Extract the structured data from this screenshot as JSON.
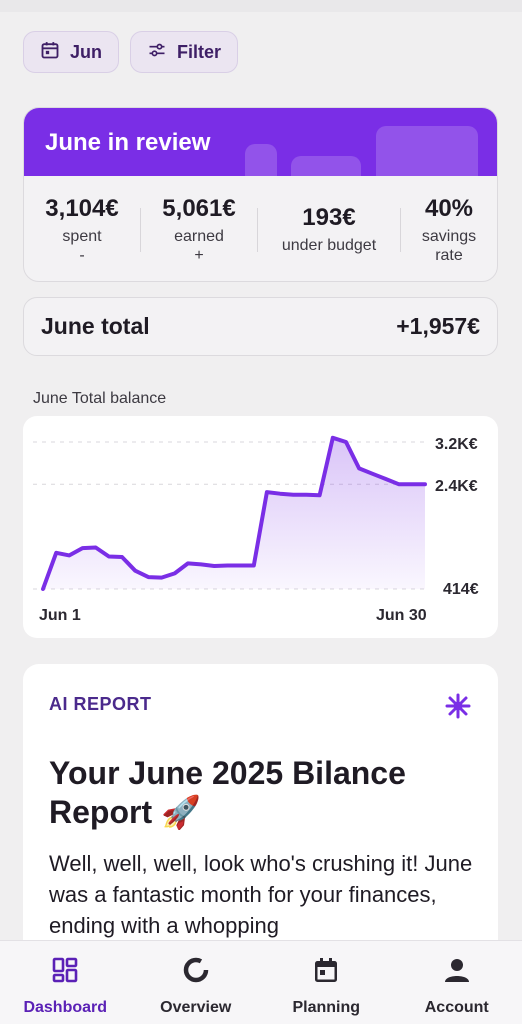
{
  "filters": {
    "month_label": "Jun",
    "filter_label": "Filter"
  },
  "review": {
    "title": "June in review",
    "stats": [
      {
        "value": "3,104€",
        "label": "spent",
        "sub": "-"
      },
      {
        "value": "5,061€",
        "label": "earned",
        "sub": "+"
      },
      {
        "value": "193€",
        "label": "under budget",
        "sub": ""
      },
      {
        "value": "40%",
        "label": "savings",
        "sub": "rate"
      }
    ]
  },
  "total": {
    "label": "June total",
    "value": "+1,957€"
  },
  "balance_chart_label": "June Total balance",
  "chart_data": {
    "type": "area",
    "title": "June Total balance",
    "x_labels": [
      "Jun 1",
      "Jun 30"
    ],
    "y_tick_labels": [
      "3.2K€",
      "2.4K€",
      "414€"
    ],
    "ylim": [
      414,
      3200
    ],
    "x": [
      1,
      2,
      3,
      4,
      5,
      6,
      7,
      8,
      9,
      10,
      11,
      12,
      13,
      14,
      15,
      16,
      17,
      18,
      19,
      20,
      21,
      22,
      23,
      24,
      25,
      26,
      27,
      28,
      29,
      30
    ],
    "values": [
      414,
      1100,
      1050,
      1190,
      1200,
      1030,
      1020,
      760,
      640,
      630,
      710,
      900,
      880,
      850,
      860,
      860,
      860,
      2250,
      2220,
      2200,
      2200,
      2190,
      3280,
      3200,
      2700,
      2600,
      2500,
      2400,
      2400,
      2400
    ],
    "color": "#7a2ee6",
    "grid": true
  },
  "ai_report": {
    "tag": "AI REPORT",
    "title": "Your June 2025 Bilance Report 🚀",
    "body": "Well, well, well, look who's crushing it! June was a fantastic month for your finances, ending with a whopping"
  },
  "nav": {
    "items": [
      {
        "label": "Dashboard",
        "icon": "dashboard-icon"
      },
      {
        "label": "Overview",
        "icon": "donut-icon"
      },
      {
        "label": "Planning",
        "icon": "calendar-icon"
      },
      {
        "label": "Account",
        "icon": "person-icon"
      }
    ]
  }
}
